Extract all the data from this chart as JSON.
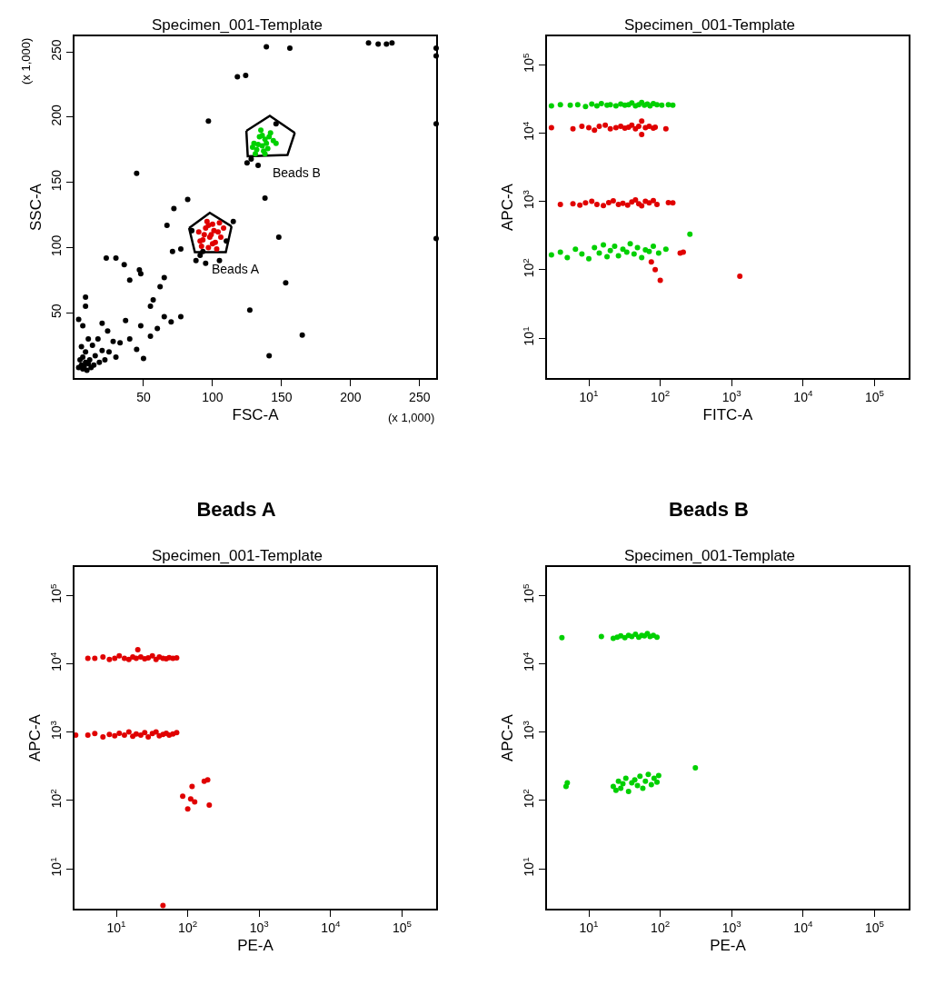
{
  "chart_data": [
    {
      "type": "scatter",
      "title": "Specimen_001-Template",
      "xlabel": "FSC-A",
      "ylabel": "SSC-A",
      "xlim": [
        0,
        262
      ],
      "ylim": [
        0,
        262
      ],
      "xticks": [
        50,
        100,
        150,
        200,
        250
      ],
      "yticks": [
        50,
        100,
        150,
        200,
        250
      ],
      "annotations": [
        "(x 1,000)",
        "(x 1,000)"
      ],
      "series": [
        {
          "type": "line",
          "color": "#000000",
          "x": [
            124.5,
            141.5,
            159.6
          ],
          "values": [
            189.5,
            201,
            188
          ]
        },
        {
          "type": "line",
          "name": "Beads B",
          "color": "#000000",
          "x": [
            124.5,
            125.5,
            154.3,
            159.6
          ],
          "values": [
            189.5,
            170,
            171,
            188
          ]
        },
        {
          "type": "line",
          "color": "#000000",
          "x": [
            83,
            98,
            113.8
          ],
          "values": [
            115,
            126.7,
            116.3
          ]
        },
        {
          "type": "line",
          "name": "Beads A",
          "color": "#000000",
          "x": [
            83,
            87.2,
            109.6,
            113.8
          ],
          "values": [
            115,
            96.5,
            96.5,
            116.3
          ]
        },
        {
          "color": "#000000",
          "x": [
            3,
            5,
            6,
            8,
            4,
            7,
            10,
            9,
            12,
            6,
            11,
            14,
            8,
            15,
            18,
            5,
            13,
            20,
            22,
            10,
            17,
            25,
            28,
            30,
            6,
            3,
            8,
            8,
            20,
            24,
            33,
            40,
            45,
            50,
            55,
            60,
            37,
            48,
            55,
            65,
            70,
            77,
            57,
            62,
            48,
            40,
            23,
            30,
            36,
            47,
            65,
            71,
            77,
            67,
            72,
            82,
            88,
            95,
            105,
            115,
            97,
            45,
            124,
            118,
            139,
            156,
            146,
            138,
            148,
            262,
            262,
            262,
            262,
            153,
            165,
            141,
            127,
            213,
            220,
            226,
            230,
            125,
            133,
            128,
            91,
            93,
            85,
            110
          ],
          "values": [
            8,
            10,
            7,
            12,
            14,
            9,
            11,
            6,
            8,
            16,
            14,
            10,
            20,
            17,
            12,
            24,
            25,
            21,
            14,
            30,
            30,
            20,
            28,
            16,
            40,
            45,
            55,
            62,
            42,
            36,
            27,
            30,
            22,
            15,
            32,
            38,
            44,
            40,
            55,
            47,
            43,
            47,
            60,
            70,
            80,
            75,
            92,
            92,
            87,
            83,
            77,
            97,
            99,
            117,
            130,
            137,
            90,
            88,
            90,
            120,
            197,
            157,
            232,
            231,
            254,
            253,
            195,
            138,
            108,
            253,
            247,
            195,
            107,
            73,
            33,
            17,
            52,
            257,
            256,
            256,
            257,
            165,
            163,
            168,
            94,
            97,
            113,
            105
          ]
        },
        {
          "color": "#e00000",
          "x": [
            90,
            93,
            95,
            97,
            99,
            100,
            102,
            104,
            106,
            96,
            92,
            98,
            101,
            103,
            108,
            94,
            100,
            97,
            105,
            91
          ],
          "values": [
            112,
            106,
            115,
            100,
            110,
            118,
            104,
            112,
            108,
            120,
            101,
            108,
            113,
            99,
            115,
            110,
            103,
            117,
            119,
            105
          ]
        },
        {
          "color": "#00d000",
          "x": [
            130,
            132,
            134,
            136,
            138,
            140,
            142,
            135,
            131,
            137,
            139,
            144,
            133,
            141,
            129,
            146,
            136,
            138
          ],
          "values": [
            180,
            175,
            185,
            178,
            183,
            176,
            188,
            190,
            172,
            174,
            180,
            182,
            179,
            185,
            177,
            180,
            186,
            172
          ]
        }
      ]
    },
    {
      "type": "scatter",
      "title": "Specimen_001-Template",
      "xlabel": "FITC-A",
      "ylabel": "APC-A",
      "log": "xy",
      "xlim": [
        2.6,
        300000
      ],
      "ylim": [
        2.6,
        260000
      ],
      "marker": "circle",
      "xticks": [
        {
          "value": 10,
          "label": "10$^{1}$"
        },
        {
          "value": 100,
          "label": "10$^{2}$"
        },
        {
          "value": 1000,
          "label": "10$^{3}$"
        },
        {
          "value": 10000,
          "label": "10$^{4}$"
        },
        {
          "value": 100000,
          "label": "10$^{5}$"
        }
      ],
      "yticks": [
        {
          "value": 10,
          "label": "10$^{1}$"
        },
        {
          "value": 100,
          "label": "10$^{2}$"
        },
        {
          "value": 1000,
          "label": "10$^{3}$"
        },
        {
          "value": 10000,
          "label": "10$^{4}$"
        },
        {
          "value": 100000,
          "label": "10$^{5}$"
        }
      ],
      "series": [
        {
          "color": "#00d000",
          "x": [
            3,
            4,
            5.5,
            7,
            9,
            11,
            13,
            15,
            18,
            20,
            24,
            28,
            32,
            36,
            40,
            45,
            50,
            55,
            60,
            66,
            72,
            80,
            90,
            105,
            130,
            150
          ],
          "values": [
            25000,
            26000,
            25500,
            26000,
            24500,
            26500,
            25000,
            27000,
            25500,
            26000,
            25000,
            26500,
            25500,
            26000,
            27500,
            25000,
            26000,
            28000,
            25500,
            26500,
            25000,
            27000,
            26000,
            25500,
            26000,
            25500
          ]
        },
        {
          "color": "#e00000",
          "x": [
            3,
            6,
            8,
            10,
            12,
            14,
            17,
            20,
            24,
            28,
            32,
            36,
            40,
            45,
            50,
            55,
            55,
            62,
            70,
            80,
            85,
            120
          ],
          "values": [
            12000,
            11500,
            12500,
            12000,
            11000,
            12500,
            13000,
            11500,
            12000,
            12500,
            11800,
            12200,
            13000,
            11500,
            12500,
            9500,
            15000,
            12000,
            12500,
            11800,
            12200,
            11500
          ]
        },
        {
          "color": "#e00000",
          "x": [
            4,
            6,
            7.5,
            9,
            11,
            13,
            16,
            19,
            22,
            26,
            30,
            35,
            40,
            45,
            50,
            55,
            62,
            70,
            80,
            90,
            130,
            150
          ],
          "values": [
            900,
            920,
            880,
            950,
            1000,
            900,
            870,
            960,
            1020,
            900,
            940,
            880,
            980,
            1050,
            920,
            860,
            1000,
            950,
            1030,
            900,
            960,
            950
          ]
        },
        {
          "color": "#00d000",
          "x": [
            3,
            4,
            5,
            6.5,
            8,
            10,
            12,
            14,
            16,
            18,
            20,
            23,
            26,
            30,
            34,
            38,
            43,
            48,
            55,
            62,
            70,
            80,
            95,
            120
          ],
          "values": [
            165,
            180,
            150,
            200,
            170,
            145,
            210,
            175,
            230,
            155,
            190,
            220,
            160,
            200,
            180,
            240,
            170,
            210,
            150,
            195,
            185,
            220,
            175,
            200
          ]
        },
        {
          "color": "#e00000",
          "x": [
            190,
            210,
            75,
            85,
            100,
            1300
          ],
          "values": [
            175,
            180,
            130,
            100,
            70,
            80
          ]
        },
        {
          "color": "#00d000",
          "x": [
            260
          ],
          "values": [
            330
          ]
        }
      ]
    },
    {
      "type": "scatter",
      "title": "Beads A",
      "subtitle": "Specimen_001-Template",
      "xlabel": "PE-A",
      "ylabel": "APC-A",
      "log": "xy",
      "xlim": [
        2.6,
        300000
      ],
      "ylim": [
        2.6,
        260000
      ],
      "marker": "circle",
      "xticks": [
        {
          "value": 10,
          "label": "10$^{1}$"
        },
        {
          "value": 100,
          "label": "10$^{2}$"
        },
        {
          "value": 1000,
          "label": "10$^{3}$"
        },
        {
          "value": 10000,
          "label": "10$^{4}$"
        },
        {
          "value": 100000,
          "label": "10$^{5}$"
        }
      ],
      "yticks": [
        {
          "value": 10,
          "label": "10$^{1}$"
        },
        {
          "value": 100,
          "label": "10$^{2}$"
        },
        {
          "value": 1000,
          "label": "10$^{3}$"
        },
        {
          "value": 10000,
          "label": "10$^{4}$"
        },
        {
          "value": 100000,
          "label": "10$^{5}$"
        }
      ],
      "series": [
        {
          "color": "#e00000",
          "x": [
            4,
            5,
            6.5,
            8,
            9.5,
            11,
            13,
            15,
            17,
            19,
            20,
            22,
            25,
            28,
            32,
            36,
            40,
            45,
            50,
            55,
            62,
            70
          ],
          "values": [
            12000,
            12000,
            12500,
            11500,
            12000,
            13000,
            12000,
            11500,
            12500,
            12000,
            16000,
            12500,
            11800,
            12200,
            13000,
            11500,
            12500,
            12000,
            11800,
            12300,
            12000,
            12200
          ]
        },
        {
          "color": "#e00000",
          "x": [
            2.7,
            4,
            5,
            6.5,
            8,
            9.5,
            11,
            13,
            15,
            17,
            19,
            22,
            25,
            28,
            32,
            36,
            40,
            45,
            50,
            55,
            62,
            70
          ],
          "values": [
            900,
            900,
            950,
            850,
            920,
            880,
            960,
            900,
            1000,
            870,
            940,
            900,
            980,
            850,
            950,
            1000,
            880,
            920,
            960,
            900,
            940,
            980
          ]
        },
        {
          "color": "#e00000",
          "x": [
            85,
            115,
            100,
            110,
            125,
            170,
            190,
            200,
            45
          ],
          "values": [
            115,
            160,
            75,
            105,
            95,
            190,
            200,
            85,
            2.9
          ]
        }
      ]
    },
    {
      "type": "scatter",
      "title": "Beads B",
      "subtitle": "Specimen_001-Template",
      "xlabel": "PE-A",
      "ylabel": "APC-A",
      "log": "xy",
      "xlim": [
        2.6,
        300000
      ],
      "ylim": [
        2.6,
        260000
      ],
      "marker": "circle",
      "xticks": [
        {
          "value": 10,
          "label": "10$^{1}$"
        },
        {
          "value": 100,
          "label": "10$^{2}$"
        },
        {
          "value": 1000,
          "label": "10$^{3}$"
        },
        {
          "value": 10000,
          "label": "10$^{4}$"
        },
        {
          "value": 100000,
          "label": "10$^{5}$"
        }
      ],
      "yticks": [
        {
          "value": 10,
          "label": "10$^{1}$"
        },
        {
          "value": 100,
          "label": "10$^{2}$"
        },
        {
          "value": 1000,
          "label": "10$^{3}$"
        },
        {
          "value": 10000,
          "label": "10$^{4}$"
        },
        {
          "value": 100000,
          "label": "10$^{5}$"
        }
      ],
      "series": [
        {
          "color": "#00d000",
          "x": [
            4.2,
            15,
            22,
            25,
            28,
            32,
            36,
            40,
            45,
            50,
            55,
            60,
            66,
            72,
            80,
            90
          ],
          "values": [
            24000,
            25000,
            23500,
            24500,
            25500,
            24000,
            26000,
            25000,
            27000,
            24500,
            26000,
            25500,
            27500,
            25000,
            26000,
            24500
          ]
        },
        {
          "color": "#00d000",
          "x": [
            22,
            24,
            26,
            28,
            30,
            33,
            36,
            40,
            44,
            48,
            52,
            57,
            62,
            68,
            75,
            82,
            90,
            95,
            4.8,
            5,
            310
          ],
          "values": [
            160,
            140,
            190,
            150,
            175,
            210,
            135,
            180,
            200,
            165,
            225,
            150,
            190,
            240,
            170,
            210,
            185,
            230,
            160,
            180,
            300
          ]
        }
      ]
    }
  ]
}
